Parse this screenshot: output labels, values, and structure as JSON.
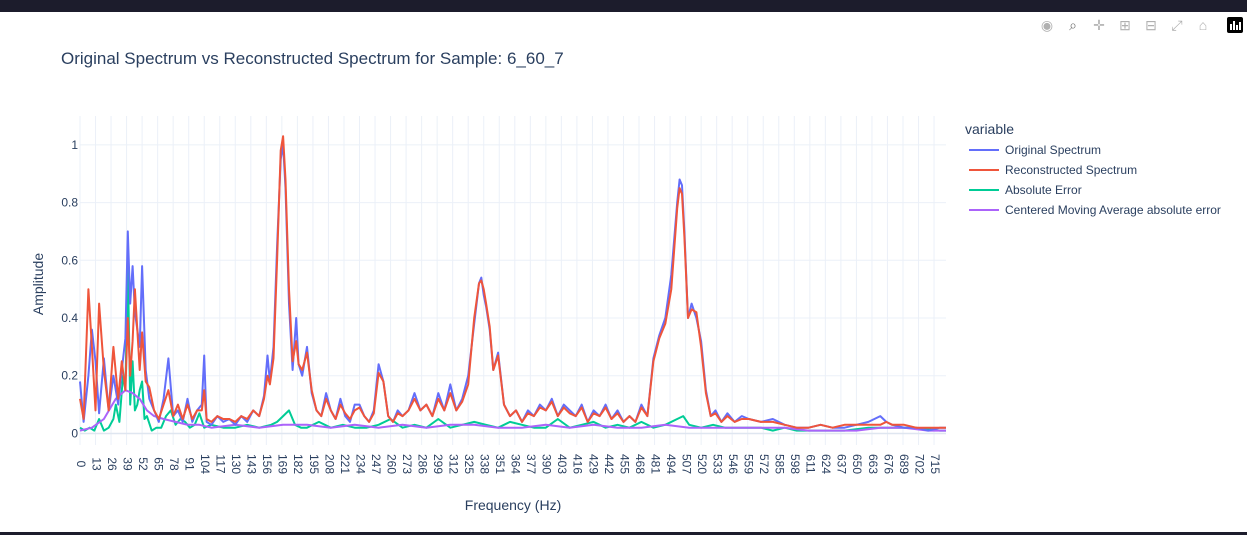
{
  "toolbar": {
    "items": [
      {
        "name": "camera-icon",
        "glyph": "◉"
      },
      {
        "name": "zoom-icon",
        "glyph": "⌕"
      },
      {
        "name": "pan-icon",
        "glyph": "✛"
      },
      {
        "name": "zoom-in-icon",
        "glyph": "⊞"
      },
      {
        "name": "zoom-out-icon",
        "glyph": "⊟"
      },
      {
        "name": "autoscale-icon",
        "glyph": "⤢"
      },
      {
        "name": "reset-axes-icon",
        "glyph": "⌂"
      }
    ]
  },
  "chart_data": {
    "type": "line",
    "title": "Original Spectrum vs Reconstructed Spectrum for Sample: 6_60_7",
    "xlabel": "Frequency (Hz)",
    "ylabel": "Amplitude",
    "xlim": [
      0,
      725
    ],
    "ylim": [
      -0.04,
      1.1
    ],
    "x_ticks": [
      0,
      13,
      26,
      39,
      52,
      65,
      78,
      91,
      104,
      117,
      130,
      143,
      156,
      169,
      182,
      195,
      208,
      221,
      234,
      247,
      260,
      273,
      286,
      299,
      312,
      325,
      338,
      351,
      364,
      377,
      390,
      403,
      416,
      429,
      442,
      455,
      468,
      481,
      494,
      507,
      520,
      533,
      546,
      559,
      572,
      585,
      598,
      611,
      624,
      637,
      650,
      663,
      676,
      689,
      702,
      715
    ],
    "x_tick_labels": [
      "0",
      "13",
      "26",
      "39",
      "52",
      "65",
      "78",
      "91",
      "104",
      "117",
      "130",
      "143",
      "156",
      "169",
      "182",
      "195",
      "208",
      "221",
      "234",
      "247",
      "260",
      "273",
      "286",
      "299",
      "312",
      "325",
      "338",
      "351",
      "364",
      "377",
      "390",
      "403",
      "416",
      "429",
      "442",
      "455",
      "468",
      "481",
      "494",
      "507",
      "520",
      "533",
      "546",
      "559",
      "572",
      "585",
      "598",
      "611",
      "624",
      "637",
      "650",
      "663",
      "676",
      "689",
      "702",
      "715"
    ],
    "y_ticks": [
      0,
      0.2,
      0.4,
      0.6,
      0.8,
      1
    ],
    "y_tick_labels": [
      "0",
      "0.2",
      "0.4",
      "0.6",
      "0.8",
      "1"
    ],
    "grid": true,
    "legend": {
      "title": "variable",
      "placement": "right",
      "entries": [
        "Original Spectrum",
        "Reconstructed Spectrum",
        "Absolute Error",
        "Centered Moving Average absolute error"
      ]
    },
    "series": [
      {
        "name": "Original Spectrum",
        "color": "#636efa",
        "x": [
          0,
          3,
          7,
          10,
          13,
          16,
          20,
          24,
          28,
          32,
          35,
          38,
          40,
          42,
          44,
          46,
          50,
          52,
          55,
          58,
          62,
          66,
          70,
          74,
          78,
          82,
          86,
          90,
          94,
          98,
          102,
          104,
          106,
          110,
          115,
          120,
          125,
          130,
          135,
          140,
          145,
          150,
          154,
          157,
          159,
          162,
          165,
          168,
          170,
          172,
          175,
          178,
          181,
          183,
          186,
          190,
          194,
          198,
          202,
          206,
          210,
          214,
          218,
          222,
          226,
          230,
          234,
          238,
          242,
          246,
          250,
          254,
          258,
          262,
          266,
          270,
          275,
          280,
          285,
          290,
          295,
          300,
          305,
          310,
          315,
          320,
          325,
          330,
          334,
          336,
          338,
          340,
          343,
          346,
          350,
          355,
          360,
          365,
          370,
          375,
          380,
          385,
          390,
          395,
          400,
          405,
          410,
          415,
          420,
          425,
          430,
          435,
          440,
          445,
          450,
          455,
          460,
          465,
          470,
          475,
          480,
          485,
          490,
          495,
          500,
          502,
          504,
          506,
          509,
          512,
          516,
          520,
          524,
          528,
          532,
          537,
          542,
          548,
          554,
          560,
          570,
          580,
          590,
          600,
          610,
          620,
          630,
          640,
          650,
          660,
          670,
          675,
          680,
          690,
          700,
          710,
          720,
          725
        ],
        "y": [
          0.18,
          0.04,
          0.2,
          0.36,
          0.25,
          0.07,
          0.26,
          0.08,
          0.2,
          0.1,
          0.22,
          0.33,
          0.7,
          0.45,
          0.58,
          0.42,
          0.3,
          0.58,
          0.22,
          0.12,
          0.08,
          0.04,
          0.12,
          0.26,
          0.06,
          0.08,
          0.04,
          0.12,
          0.04,
          0.08,
          0.1,
          0.27,
          0.04,
          0.03,
          0.06,
          0.04,
          0.05,
          0.03,
          0.06,
          0.04,
          0.08,
          0.06,
          0.13,
          0.27,
          0.18,
          0.3,
          0.65,
          0.95,
          1.0,
          0.85,
          0.45,
          0.22,
          0.4,
          0.24,
          0.2,
          0.3,
          0.14,
          0.08,
          0.06,
          0.14,
          0.08,
          0.05,
          0.12,
          0.06,
          0.04,
          0.1,
          0.1,
          0.06,
          0.04,
          0.08,
          0.24,
          0.18,
          0.06,
          0.04,
          0.08,
          0.06,
          0.08,
          0.14,
          0.08,
          0.1,
          0.06,
          0.14,
          0.08,
          0.17,
          0.08,
          0.12,
          0.2,
          0.38,
          0.52,
          0.54,
          0.48,
          0.44,
          0.36,
          0.22,
          0.28,
          0.1,
          0.06,
          0.08,
          0.04,
          0.08,
          0.06,
          0.1,
          0.08,
          0.12,
          0.06,
          0.1,
          0.08,
          0.06,
          0.1,
          0.04,
          0.08,
          0.06,
          0.1,
          0.05,
          0.08,
          0.04,
          0.06,
          0.04,
          0.1,
          0.06,
          0.26,
          0.34,
          0.4,
          0.55,
          0.8,
          0.88,
          0.86,
          0.7,
          0.4,
          0.45,
          0.4,
          0.32,
          0.15,
          0.06,
          0.08,
          0.04,
          0.07,
          0.04,
          0.06,
          0.05,
          0.04,
          0.05,
          0.03,
          0.02,
          0.02,
          0.03,
          0.02,
          0.02,
          0.03,
          0.04,
          0.06,
          0.04,
          0.03,
          0.02,
          0.02,
          0.01,
          0.02,
          0.02
        ]
      },
      {
        "name": "Reconstructed Spectrum",
        "color": "#ef553b",
        "x": [
          0,
          3,
          7,
          10,
          13,
          16,
          20,
          24,
          28,
          32,
          35,
          38,
          40,
          42,
          44,
          46,
          50,
          52,
          55,
          58,
          62,
          66,
          70,
          74,
          78,
          82,
          86,
          90,
          94,
          98,
          102,
          104,
          106,
          110,
          115,
          120,
          125,
          130,
          135,
          140,
          145,
          150,
          154,
          157,
          159,
          162,
          165,
          168,
          170,
          172,
          175,
          178,
          181,
          183,
          186,
          190,
          194,
          198,
          202,
          206,
          210,
          214,
          218,
          222,
          226,
          230,
          234,
          238,
          242,
          246,
          250,
          254,
          258,
          262,
          266,
          270,
          275,
          280,
          285,
          290,
          295,
          300,
          305,
          310,
          315,
          320,
          325,
          330,
          334,
          336,
          338,
          340,
          343,
          346,
          350,
          355,
          360,
          365,
          370,
          375,
          380,
          385,
          390,
          395,
          400,
          405,
          410,
          415,
          420,
          425,
          430,
          435,
          440,
          445,
          450,
          455,
          460,
          465,
          470,
          475,
          480,
          485,
          490,
          495,
          500,
          502,
          504,
          506,
          509,
          512,
          516,
          520,
          524,
          528,
          532,
          537,
          542,
          548,
          554,
          560,
          570,
          580,
          590,
          600,
          610,
          620,
          630,
          640,
          650,
          660,
          670,
          675,
          680,
          690,
          700,
          710,
          720,
          725
        ],
        "y": [
          0.12,
          0.05,
          0.5,
          0.3,
          0.08,
          0.45,
          0.22,
          0.08,
          0.3,
          0.12,
          0.25,
          0.15,
          0.4,
          0.2,
          0.32,
          0.5,
          0.22,
          0.35,
          0.18,
          0.16,
          0.08,
          0.05,
          0.1,
          0.15,
          0.06,
          0.1,
          0.05,
          0.1,
          0.05,
          0.08,
          0.08,
          0.15,
          0.05,
          0.04,
          0.06,
          0.05,
          0.05,
          0.04,
          0.06,
          0.05,
          0.08,
          0.06,
          0.12,
          0.2,
          0.17,
          0.26,
          0.6,
          0.98,
          1.03,
          0.88,
          0.5,
          0.25,
          0.32,
          0.24,
          0.22,
          0.28,
          0.15,
          0.08,
          0.06,
          0.12,
          0.08,
          0.05,
          0.1,
          0.07,
          0.05,
          0.08,
          0.09,
          0.06,
          0.04,
          0.07,
          0.21,
          0.18,
          0.06,
          0.04,
          0.07,
          0.06,
          0.08,
          0.12,
          0.08,
          0.1,
          0.06,
          0.12,
          0.08,
          0.14,
          0.08,
          0.11,
          0.17,
          0.4,
          0.52,
          0.53,
          0.5,
          0.45,
          0.37,
          0.22,
          0.27,
          0.1,
          0.06,
          0.08,
          0.04,
          0.07,
          0.06,
          0.09,
          0.08,
          0.11,
          0.06,
          0.09,
          0.07,
          0.06,
          0.09,
          0.04,
          0.07,
          0.06,
          0.09,
          0.05,
          0.07,
          0.04,
          0.06,
          0.04,
          0.09,
          0.06,
          0.25,
          0.33,
          0.38,
          0.5,
          0.78,
          0.85,
          0.83,
          0.68,
          0.4,
          0.43,
          0.42,
          0.3,
          0.14,
          0.06,
          0.07,
          0.04,
          0.06,
          0.04,
          0.05,
          0.05,
          0.04,
          0.04,
          0.03,
          0.02,
          0.02,
          0.03,
          0.02,
          0.03,
          0.03,
          0.03,
          0.03,
          0.04,
          0.03,
          0.03,
          0.02,
          0.02,
          0.02,
          0.02
        ]
      },
      {
        "name": "Absolute Error",
        "color": "#00cc96",
        "x": [
          0,
          4,
          8,
          12,
          16,
          20,
          24,
          28,
          30,
          33,
          36,
          38,
          40,
          42,
          44,
          46,
          48,
          50,
          52,
          54,
          56,
          60,
          64,
          68,
          72,
          76,
          80,
          84,
          88,
          92,
          96,
          100,
          104,
          110,
          120,
          130,
          140,
          150,
          160,
          165,
          170,
          175,
          180,
          185,
          190,
          200,
          210,
          220,
          230,
          240,
          250,
          260,
          270,
          280,
          290,
          300,
          310,
          320,
          330,
          340,
          350,
          360,
          370,
          380,
          390,
          400,
          410,
          420,
          430,
          440,
          450,
          460,
          470,
          480,
          490,
          500,
          505,
          510,
          520,
          530,
          540,
          550,
          560,
          570,
          580,
          590,
          600,
          620,
          640,
          660,
          680,
          700,
          720,
          725
        ],
        "y": [
          0.02,
          0.01,
          0.02,
          0.01,
          0.05,
          0.01,
          0.02,
          0.05,
          0.1,
          0.04,
          0.2,
          0.15,
          0.6,
          0.1,
          0.25,
          0.08,
          0.1,
          0.15,
          0.18,
          0.05,
          0.06,
          0.01,
          0.02,
          0.02,
          0.06,
          0.08,
          0.03,
          0.05,
          0.04,
          0.02,
          0.03,
          0.07,
          0.02,
          0.03,
          0.02,
          0.02,
          0.03,
          0.02,
          0.03,
          0.04,
          0.06,
          0.08,
          0.03,
          0.02,
          0.02,
          0.04,
          0.02,
          0.03,
          0.02,
          0.02,
          0.03,
          0.05,
          0.02,
          0.03,
          0.02,
          0.05,
          0.02,
          0.03,
          0.04,
          0.03,
          0.02,
          0.04,
          0.03,
          0.02,
          0.02,
          0.05,
          0.02,
          0.03,
          0.04,
          0.02,
          0.03,
          0.02,
          0.04,
          0.02,
          0.03,
          0.05,
          0.06,
          0.03,
          0.02,
          0.03,
          0.02,
          0.02,
          0.02,
          0.02,
          0.01,
          0.02,
          0.01,
          0.01,
          0.01,
          0.02,
          0.02,
          0.02,
          0.01,
          0.01
        ]
      },
      {
        "name": "Centered Moving Average absolute error",
        "color": "#ab63fa",
        "x": [
          0,
          10,
          20,
          30,
          38,
          44,
          50,
          56,
          62,
          70,
          80,
          90,
          100,
          110,
          130,
          150,
          170,
          190,
          210,
          230,
          250,
          270,
          290,
          310,
          330,
          350,
          370,
          390,
          410,
          430,
          450,
          470,
          490,
          510,
          530,
          550,
          570,
          590,
          610,
          630,
          650,
          670,
          690,
          710,
          725
        ],
        "y": [
          0.01,
          0.02,
          0.05,
          0.12,
          0.15,
          0.14,
          0.12,
          0.08,
          0.06,
          0.05,
          0.04,
          0.03,
          0.03,
          0.02,
          0.03,
          0.02,
          0.03,
          0.03,
          0.02,
          0.03,
          0.02,
          0.03,
          0.02,
          0.03,
          0.03,
          0.02,
          0.02,
          0.03,
          0.02,
          0.03,
          0.02,
          0.02,
          0.03,
          0.02,
          0.02,
          0.02,
          0.02,
          0.02,
          0.01,
          0.01,
          0.01,
          0.02,
          0.02,
          0.01,
          0.01
        ]
      }
    ]
  }
}
